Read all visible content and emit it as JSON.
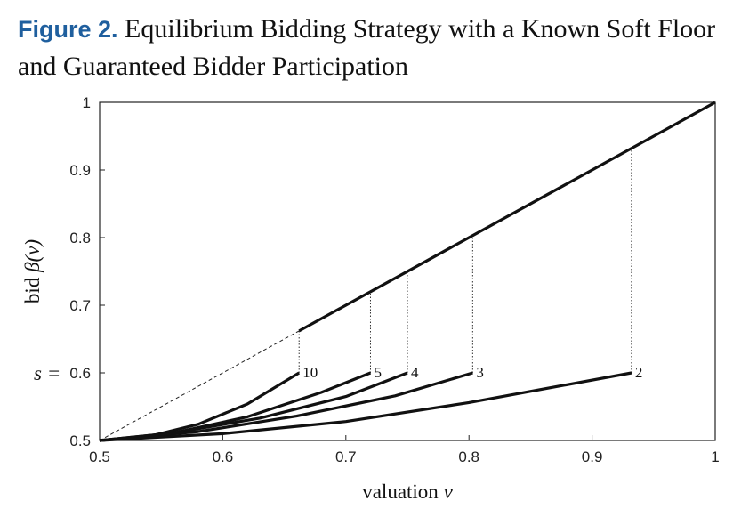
{
  "figure": {
    "label": "Figure 2.",
    "title": "Equilibrium Bidding Strategy with a Known Soft Floor and Guaranteed Bidder Participation"
  },
  "chart_data": {
    "type": "line",
    "title": "Figure 2. Equilibrium Bidding Strategy with a Known Soft Floor and Guaranteed Bidder Participation",
    "xlabel_text": "valuation ",
    "xlabel_var": "v",
    "ylabel_text": "bid ",
    "ylabel_var": "β(v)",
    "xlim": [
      0.5,
      1.0
    ],
    "ylim": [
      0.5,
      1.0
    ],
    "xticks": [
      "0.5",
      "0.6",
      "0.7",
      "0.8",
      "0.9",
      "1"
    ],
    "yticks": [
      "0.5",
      "0.6",
      "0.7",
      "0.8",
      "0.9",
      "1"
    ],
    "ytick_values": [
      0.5,
      0.6,
      0.7,
      0.8,
      0.9,
      1.0
    ],
    "xtick_values": [
      0.5,
      0.6,
      0.7,
      0.8,
      0.9,
      1.0
    ],
    "soft_floor_label": "s =",
    "soft_floor": 0.6,
    "grid": false,
    "series": [
      {
        "label": "10",
        "cutoff": 0.662,
        "points": [
          [
            0.5,
            0.5
          ],
          [
            0.54,
            0.506
          ],
          [
            0.58,
            0.524
          ],
          [
            0.62,
            0.554
          ],
          [
            0.662,
            0.6
          ]
        ]
      },
      {
        "label": "5",
        "cutoff": 0.72,
        "points": [
          [
            0.5,
            0.5
          ],
          [
            0.56,
            0.511
          ],
          [
            0.62,
            0.535
          ],
          [
            0.68,
            0.571
          ],
          [
            0.72,
            0.6
          ]
        ]
      },
      {
        "label": "4",
        "cutoff": 0.75,
        "points": [
          [
            0.5,
            0.5
          ],
          [
            0.56,
            0.511
          ],
          [
            0.63,
            0.533
          ],
          [
            0.7,
            0.565
          ],
          [
            0.75,
            0.6
          ]
        ]
      },
      {
        "label": "3",
        "cutoff": 0.803,
        "points": [
          [
            0.5,
            0.5
          ],
          [
            0.58,
            0.513
          ],
          [
            0.66,
            0.536
          ],
          [
            0.74,
            0.566
          ],
          [
            0.803,
            0.6
          ]
        ]
      },
      {
        "label": "2",
        "cutoff": 0.932,
        "points": [
          [
            0.5,
            0.5
          ],
          [
            0.6,
            0.51
          ],
          [
            0.7,
            0.528
          ],
          [
            0.8,
            0.556
          ],
          [
            0.932,
            0.6
          ]
        ]
      }
    ],
    "diagonal": {
      "points": [
        [
          0.5,
          0.5
        ],
        [
          1.0,
          1.0
        ]
      ],
      "dashed_until": 0.662
    }
  }
}
